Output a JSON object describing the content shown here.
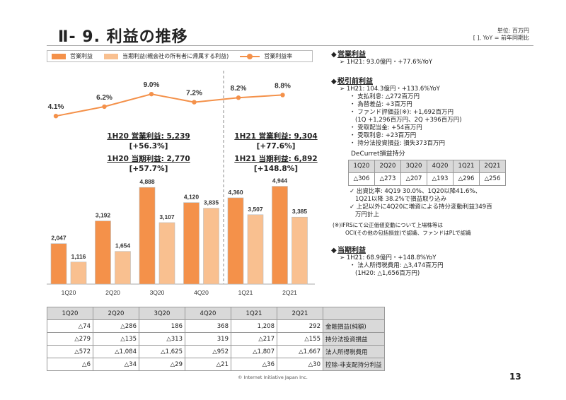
{
  "header": {
    "title": "Ⅱ- 9.  利益の推移",
    "unit": "単位: 百万円",
    "note": "[  ], YoY = 前年同期比"
  },
  "legend": {
    "op": "営業利益",
    "net": "当期利益(親会社の所有者に帰属する利益)",
    "margin": "営業利益率"
  },
  "colors": {
    "op": "#f4914a",
    "net": "#f9c090",
    "line": "#f4914a"
  },
  "summary": {
    "h20_op": "1H20 営業利益: 5,239",
    "h20_op_yoy": "[+56.3%]",
    "h20_net": "1H20 当期利益: 2,770",
    "h20_net_yoy": "[+57.7%]",
    "h21_op": "1H21 営業利益: 9,304",
    "h21_op_yoy": "[+77.6%]",
    "h21_net": "1H21 当期利益: 6,892",
    "h21_net_yoy": "[+148.8%]"
  },
  "chart_data": {
    "type": "bar",
    "categories": [
      "1Q20",
      "2Q20",
      "3Q20",
      "4Q20",
      "1Q21",
      "2Q21"
    ],
    "series": [
      {
        "name": "営業利益",
        "values": [
          2047,
          3192,
          4888,
          4120,
          4360,
          4944
        ],
        "labels": [
          "2,047",
          "3,192",
          "4,888",
          "4,120",
          "4,360",
          "4,944"
        ]
      },
      {
        "name": "当期利益(親会社の所有者に帰属する利益)",
        "values": [
          1116,
          1654,
          3107,
          3835,
          3507,
          3385
        ],
        "labels": [
          "1,116",
          "1,654",
          "3,107",
          "3,835",
          "3,507",
          "3,385"
        ]
      }
    ],
    "line_series": {
      "name": "営業利益率",
      "values": [
        4.1,
        6.2,
        9.0,
        7.2,
        8.2,
        8.8
      ],
      "labels": [
        "4.1%",
        "6.2%",
        "9.0%",
        "7.2%",
        "8.2%",
        "8.8%"
      ]
    },
    "ylim": [
      0,
      5000
    ],
    "divider_between": [
      "4Q20",
      "1Q21"
    ],
    "legend_position": "top"
  },
  "table": {
    "headers": [
      "1Q20",
      "2Q20",
      "3Q20",
      "4Q20",
      "1Q21",
      "2Q21",
      ""
    ],
    "rows": [
      {
        "values": [
          "△74",
          "△286",
          "186",
          "368",
          "1,208",
          "292"
        ],
        "label": "金融損益(純額)"
      },
      {
        "values": [
          "△279",
          "△135",
          "△313",
          "319",
          "△217",
          "△155"
        ],
        "label": "持分法投資損益"
      },
      {
        "values": [
          "△572",
          "△1,084",
          "△1,625",
          "△952",
          "△1,807",
          "△1,667"
        ],
        "label": "法人所得税費用"
      },
      {
        "values": [
          "△6",
          "△34",
          "△29",
          "△21",
          "△36",
          "△30"
        ],
        "label": "控除-非支配持分利益"
      }
    ]
  },
  "right": {
    "s1_title": "営業利益",
    "s1_l1": "1H21: 93.0億円・+77.6%YoY",
    "s2_title": "税引前利益",
    "s2_l1": "1H21: 104.3億円・+133.6%YoY",
    "s2_b1": "支払利息: △272百万円",
    "s2_b2": "為替差益: +3百万円",
    "s2_b3": "ファンド評価益(※): +1,692百万円",
    "s2_b3b": "(1Q +1,296百万円、2Q +396百万円)",
    "s2_b4": "受取配当金: +54百万円",
    "s2_b5": "受取利息: +23百万円",
    "s2_b6": "持分法投資損益: 損失373百万円",
    "dc_title": "DeCurret損益持分",
    "dc_headers": [
      "1Q20",
      "2Q20",
      "3Q20",
      "4Q20",
      "1Q21",
      "2Q21"
    ],
    "dc_values": [
      "△306",
      "△273",
      "△207",
      "△193",
      "△296",
      "△256"
    ],
    "check1": "出資比率: 4Q19 30.0%、1Q20以降41.6%、",
    "check1b": "1Q21以降 38.2%で損益取り込み",
    "check2": "上記以外に4Q20に増資による持分変動利益349百",
    "check2b": "万円計上",
    "note1": "(※)IFRSにて公正価値変動について上場株等は",
    "note2": "OCI(その他の包括損益)で認識、ファンドはPLで認識",
    "s3_title": "当期利益",
    "s3_l1": "1H21: 68.9億円・+148.8%YoY",
    "s3_b1": "法人所得税費用: △3,474百万円",
    "s3_b1b": "(1H20: △1,656百万円)"
  },
  "footer": {
    "copyright": "© Internet Initiative Japan Inc.",
    "page": "13"
  }
}
